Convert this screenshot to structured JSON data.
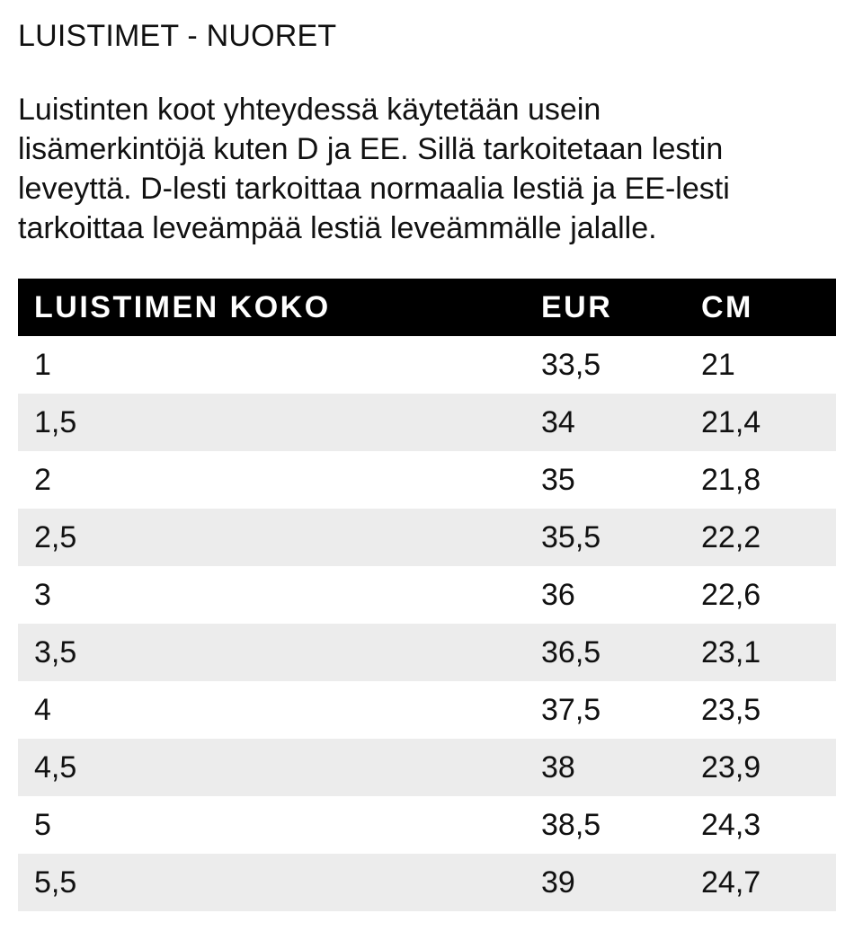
{
  "title": "LUISTIMET - NUORET",
  "intro_lines": [
    "Luistinten koot yhteydessä käytetään usein",
    "lisämerkintöjä kuten D ja EE. Sillä tarkoitetaan lestin",
    "leveyttä. D-lesti tarkoittaa normaalia lestiä ja EE-lesti",
    "tarkoittaa leveämpää lestiä leveämmälle jalalle."
  ],
  "table": {
    "headers": [
      "LUISTIMEN KOKO",
      "EUR",
      "CM"
    ],
    "rows": [
      [
        "1",
        "33,5",
        "21"
      ],
      [
        "1,5",
        "34",
        "21,4"
      ],
      [
        "2",
        "35",
        "21,8"
      ],
      [
        "2,5",
        "35,5",
        "22,2"
      ],
      [
        "3",
        "36",
        "22,6"
      ],
      [
        "3,5",
        "36,5",
        "23,1"
      ],
      [
        "4",
        "37,5",
        "23,5"
      ],
      [
        "4,5",
        "38",
        "23,9"
      ],
      [
        "5",
        "38,5",
        "24,3"
      ],
      [
        "5,5",
        "39",
        "24,7"
      ]
    ],
    "stripe_color": "#ececec",
    "header_bg": "#000000"
  }
}
